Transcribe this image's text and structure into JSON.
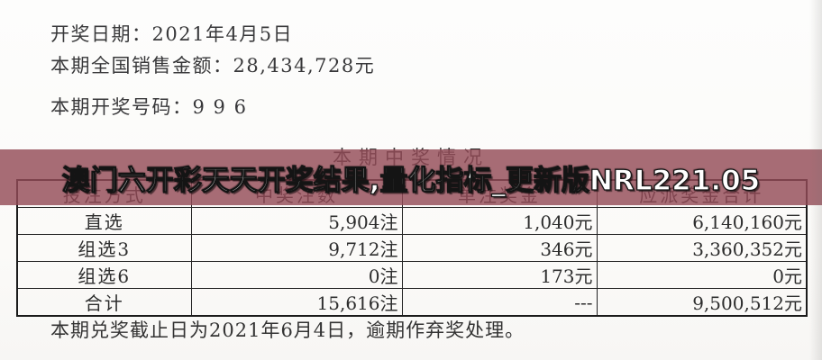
{
  "document": {
    "info_lines": [
      "开奖日期：2021年4月5日",
      "本期全国销售金额：28,434,728元",
      "本期开奖号码：9 9 6"
    ],
    "section_title": "本期中奖情况",
    "footer_note": "本期兑奖截止日为2021年6月4日，逾期作弃奖处理。"
  },
  "banner": {
    "text": "澳门六开彩天天开奖结果,量化指标_更新版NRL221.05"
  },
  "table": {
    "headers": [
      "投注方式",
      "中奖注数",
      "单注奖金",
      "应派奖金合计"
    ],
    "rows": [
      {
        "method": "直选",
        "count": "5,904注",
        "prize": "1,040元",
        "total": "6,140,160元"
      },
      {
        "method": "组选3",
        "count": "9,712注",
        "prize": "346元",
        "total": "3,360,352元"
      },
      {
        "method": "组选6",
        "count": "0注",
        "prize": "173元",
        "total": "0元"
      },
      {
        "method": "合计",
        "count": "15,616注",
        "prize": "---",
        "total": "9,500,512元"
      }
    ]
  },
  "colors": {
    "banner_overlay": "rgba(148,76,88,0.82)",
    "banner_text": "#ffffff",
    "table_border": "#1b1b1b",
    "body_text": "#38383a",
    "background": "#fbfaf8"
  }
}
